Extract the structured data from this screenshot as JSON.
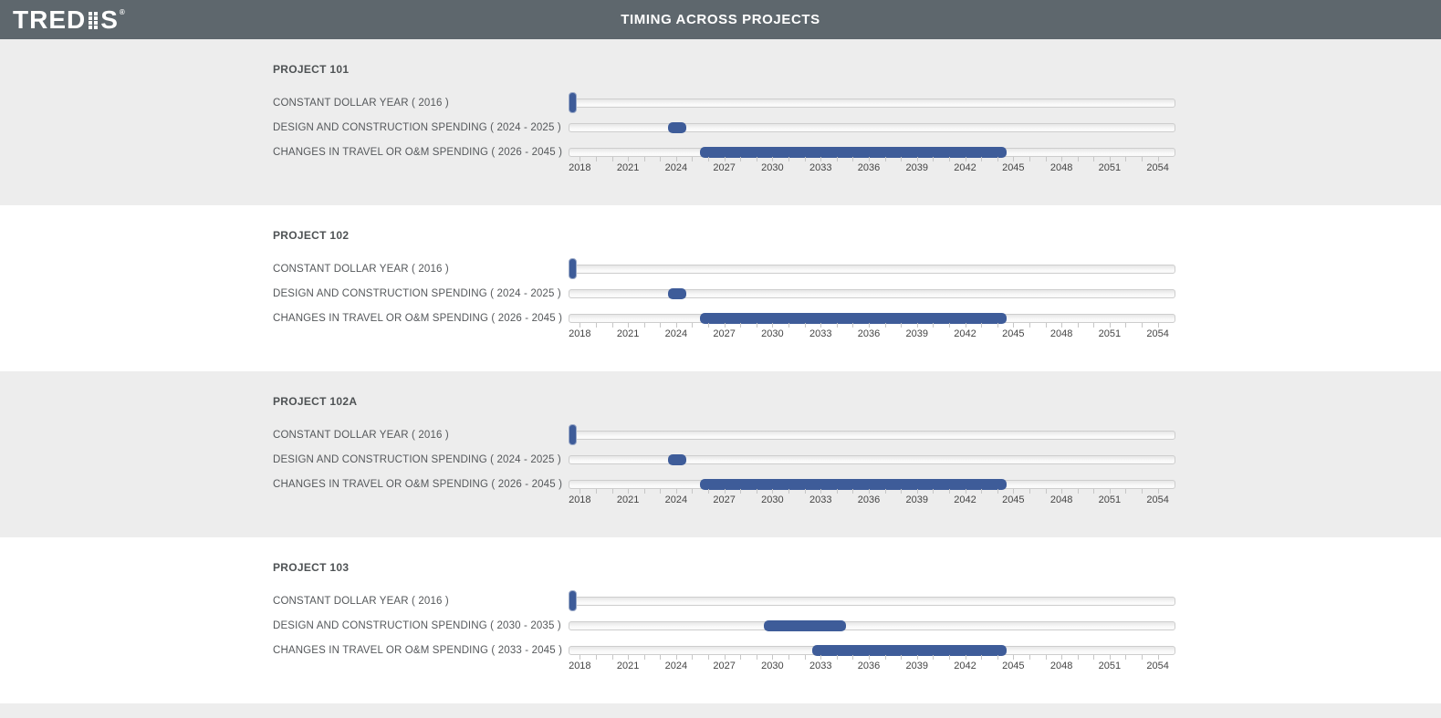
{
  "header": {
    "logo_left": "TRED",
    "logo_right": "S",
    "registered_mark": "®",
    "title": "TIMING ACROSS PROJECTS"
  },
  "colors": {
    "header_bg": "#5e676d",
    "accent_blue": "#3e5c99",
    "alt_section_bg": "#ededed"
  },
  "axis": {
    "tick_start_year": 2018,
    "tick_end_year": 2054,
    "label_interval": 3,
    "year_labels": [
      "2018",
      "2021",
      "2024",
      "2027",
      "2030",
      "2033",
      "2036",
      "2039",
      "2042",
      "2045",
      "2048",
      "2051",
      "2054"
    ]
  },
  "projects": [
    {
      "title": "PROJECT 101",
      "sliders": [
        {
          "label": "CONSTANT DOLLAR YEAR ( 2016 )",
          "type": "single",
          "value": 2016
        },
        {
          "label": "DESIGN AND CONSTRUCTION SPENDING ( 2024 - 2025 )",
          "type": "range",
          "start": 2024,
          "end": 2025
        },
        {
          "label": "CHANGES IN TRAVEL OR O&M SPENDING ( 2026 - 2045 )",
          "type": "range",
          "start": 2026,
          "end": 2045
        }
      ]
    },
    {
      "title": "PROJECT 102",
      "sliders": [
        {
          "label": "CONSTANT DOLLAR YEAR ( 2016 )",
          "type": "single",
          "value": 2016
        },
        {
          "label": "DESIGN AND CONSTRUCTION SPENDING ( 2024 - 2025 )",
          "type": "range",
          "start": 2024,
          "end": 2025
        },
        {
          "label": "CHANGES IN TRAVEL OR O&M SPENDING ( 2026 - 2045 )",
          "type": "range",
          "start": 2026,
          "end": 2045
        }
      ]
    },
    {
      "title": "PROJECT 102A",
      "sliders": [
        {
          "label": "CONSTANT DOLLAR YEAR ( 2016 )",
          "type": "single",
          "value": 2016
        },
        {
          "label": "DESIGN AND CONSTRUCTION SPENDING ( 2024 - 2025 )",
          "type": "range",
          "start": 2024,
          "end": 2025
        },
        {
          "label": "CHANGES IN TRAVEL OR O&M SPENDING ( 2026 - 2045 )",
          "type": "range",
          "start": 2026,
          "end": 2045
        }
      ]
    },
    {
      "title": "PROJECT 103",
      "sliders": [
        {
          "label": "CONSTANT DOLLAR YEAR ( 2016 )",
          "type": "single",
          "value": 2016
        },
        {
          "label": "DESIGN AND CONSTRUCTION SPENDING ( 2030 - 2035 )",
          "type": "range",
          "start": 2030,
          "end": 2035
        },
        {
          "label": "CHANGES IN TRAVEL OR O&M SPENDING ( 2033 - 2045 )",
          "type": "range",
          "start": 2033,
          "end": 2045
        }
      ]
    }
  ]
}
